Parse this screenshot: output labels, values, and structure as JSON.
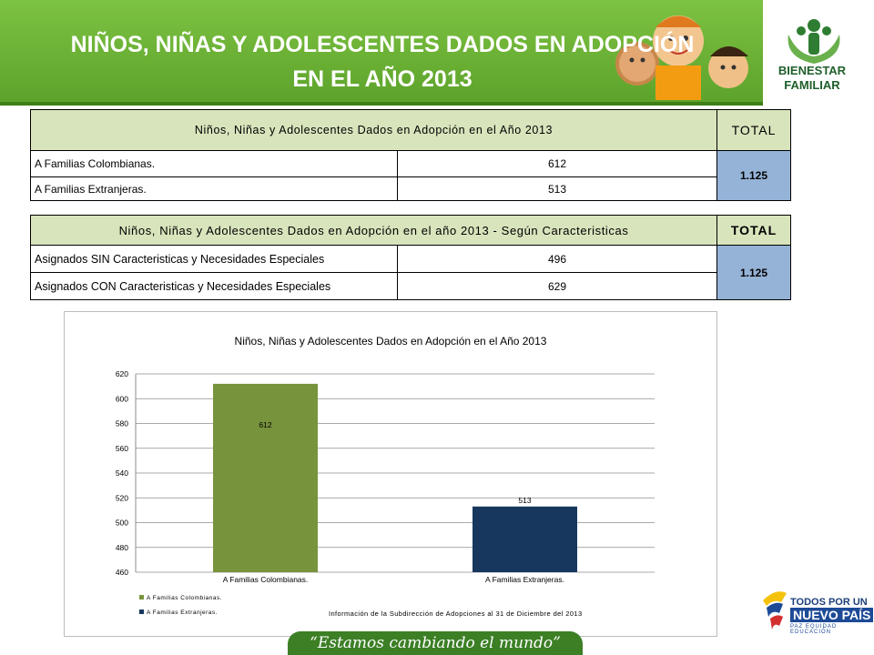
{
  "header": {
    "title_line1": "NIÑOS, NIÑAS Y ADOLESCENTES DADOS EN ADOPCIÓN",
    "title_line2": "EN EL AÑO 2013",
    "logo_line1": "BIENESTAR",
    "logo_line2": "FAMILIAR"
  },
  "table1": {
    "header": "Niños, Niñas y Adolescentes  Dados en Adopción en el Año 2013",
    "total_label": "TOTAL",
    "rows": [
      {
        "label": "A Familias Colombianas.",
        "value": "612"
      },
      {
        "label": "A Familias Extranjeras.",
        "value": "513"
      }
    ],
    "total": "1.125"
  },
  "table2": {
    "header": "Niños, Niñas y Adolescentes  Dados en Adopción en el año 2013 - Según Caracteristicas",
    "total_label": "TOTAL",
    "rows": [
      {
        "label": "Asignados SIN Caracteristicas y Necesidades Especiales",
        "value": "496"
      },
      {
        "label": "Asignados CON Caracteristicas y Necesidades Especiales",
        "value": "629"
      }
    ],
    "total": "1.125"
  },
  "chart_data": {
    "type": "bar",
    "title": "Niños, Niñas y Adolescentes Dados en Adopción en el Año 2013",
    "categories": [
      "A Familias Colombianas.",
      "A Familias Extranjeras."
    ],
    "values": [
      612,
      513
    ],
    "data_labels": [
      "612",
      "513"
    ],
    "colors": [
      "#77933c",
      "#17375e"
    ],
    "ylim": [
      460,
      620
    ],
    "yticks": [
      460,
      480,
      500,
      520,
      540,
      560,
      580,
      600,
      620
    ],
    "grid": true,
    "legend": [
      "A Familias Colombianas.",
      "A Familias Extranjeras."
    ],
    "legend_placement": "bottom-left",
    "footnote": "Información de la Subdirección de Adopciones al 31 de Diciembre del 2013"
  },
  "footer": {
    "slogan": "“Estamos cambiando el mundo”",
    "gov_line1": "TODOS POR UN",
    "gov_line2": "NUEVO PAÍS",
    "gov_line3": "PAZ  EQUIDAD  EDUCACIÓN"
  }
}
